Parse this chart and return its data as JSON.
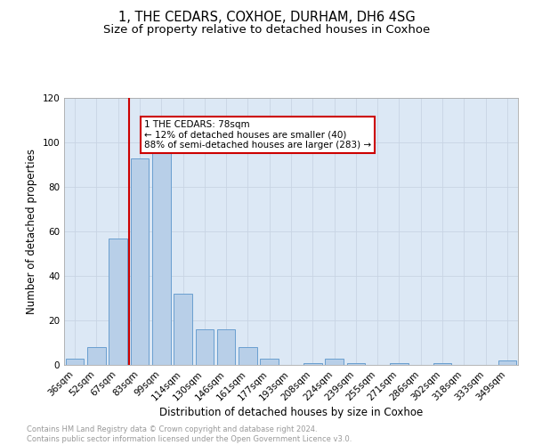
{
  "title": "1, THE CEDARS, COXHOE, DURHAM, DH6 4SG",
  "subtitle": "Size of property relative to detached houses in Coxhoe",
  "xlabel": "Distribution of detached houses by size in Coxhoe",
  "ylabel": "Number of detached properties",
  "categories": [
    "36sqm",
    "52sqm",
    "67sqm",
    "83sqm",
    "99sqm",
    "114sqm",
    "130sqm",
    "146sqm",
    "161sqm",
    "177sqm",
    "193sqm",
    "208sqm",
    "224sqm",
    "239sqm",
    "255sqm",
    "271sqm",
    "286sqm",
    "302sqm",
    "318sqm",
    "333sqm",
    "349sqm"
  ],
  "values": [
    3,
    8,
    57,
    93,
    96,
    32,
    16,
    16,
    8,
    3,
    0,
    1,
    3,
    1,
    0,
    1,
    0,
    1,
    0,
    0,
    2
  ],
  "bar_color": "#b8cfe8",
  "bar_edge_color": "#6a9fd0",
  "vline_x_index": 2.5,
  "vline_color": "#cc0000",
  "annotation_title": "1 THE CEDARS: 78sqm",
  "annotation_line1": "← 12% of detached houses are smaller (40)",
  "annotation_line2": "88% of semi-detached houses are larger (283) →",
  "annotation_box_color": "#cc0000",
  "ylim": [
    0,
    120
  ],
  "yticks": [
    0,
    20,
    40,
    60,
    80,
    100,
    120
  ],
  "grid_color": "#c8d4e4",
  "background_color": "#dce8f5",
  "footer_text": "Contains HM Land Registry data © Crown copyright and database right 2024.\nContains public sector information licensed under the Open Government Licence v3.0.",
  "title_fontsize": 10.5,
  "subtitle_fontsize": 9.5,
  "xlabel_fontsize": 8.5,
  "ylabel_fontsize": 8.5,
  "tick_fontsize": 7.5,
  "annotation_fontsize": 7.5,
  "footer_fontsize": 6.0,
  "footer_color": "#999999"
}
